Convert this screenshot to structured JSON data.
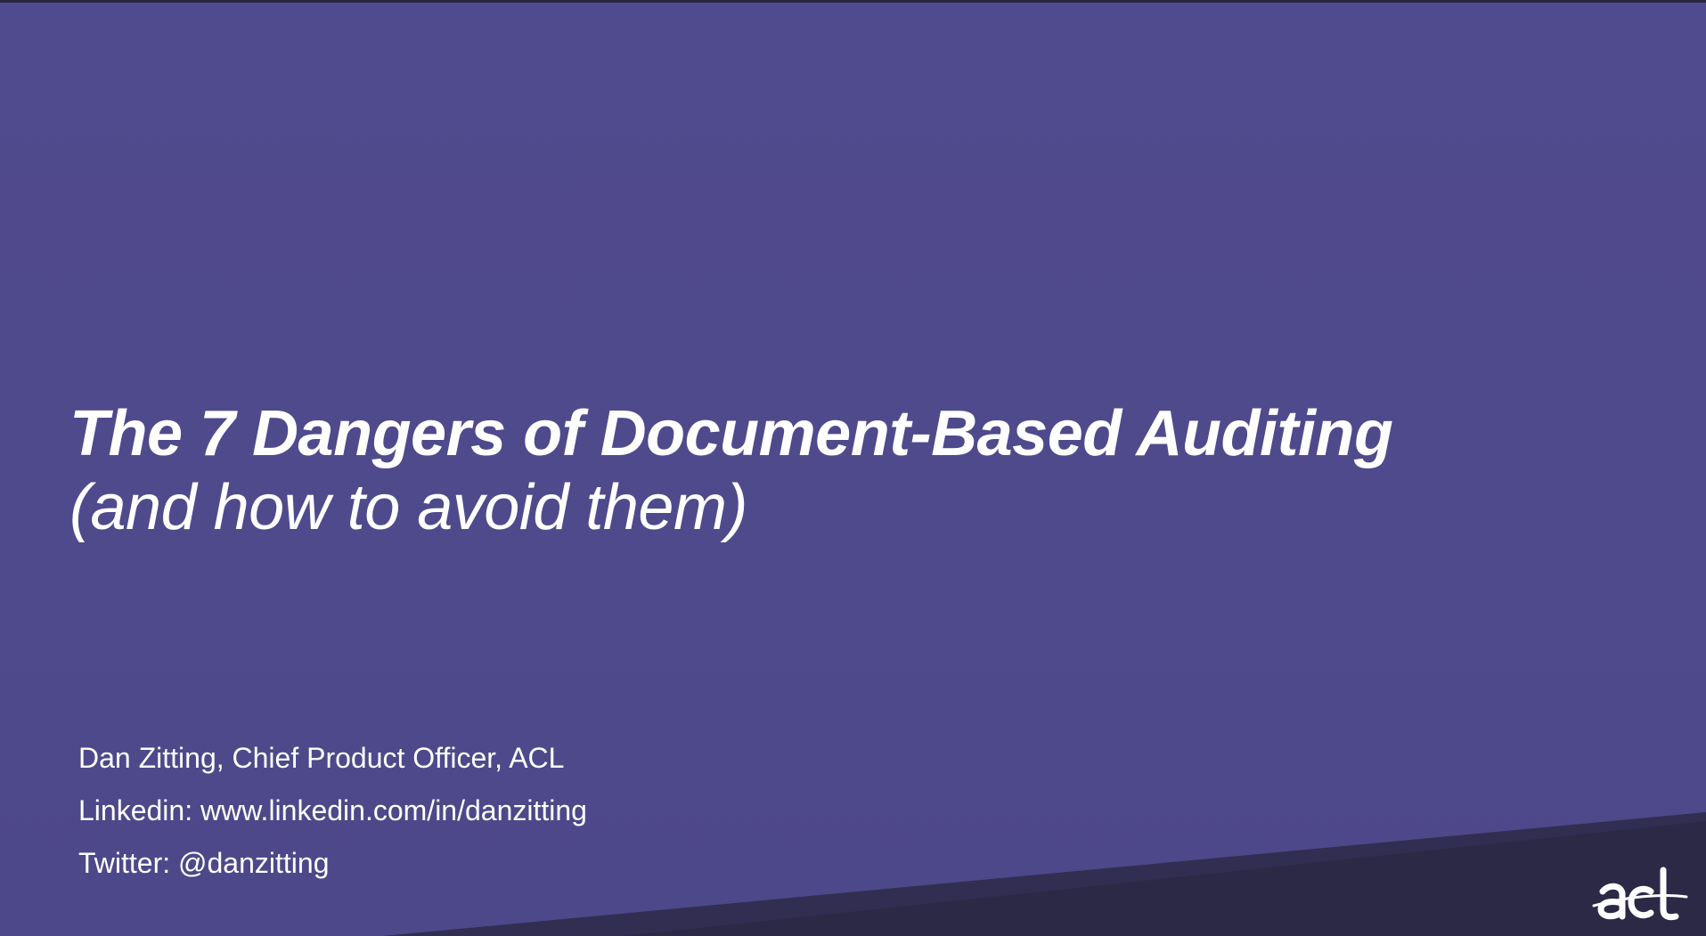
{
  "slide": {
    "title": "The 7 Dangers of Document-Based Auditing",
    "subtitle": "(and how to avoid them)",
    "presenter": {
      "name_line": "Dan Zitting, Chief Product Officer, ACL",
      "linkedin_line": "Linkedin: www.linkedin.com/in/danzitting",
      "twitter_line": "Twitter: @danzitting"
    },
    "logo": {
      "text": "acl",
      "icon": "acl-logo"
    }
  },
  "colors": {
    "background": "#504a8e",
    "band": "#2b2946",
    "text": "#ffffff"
  }
}
